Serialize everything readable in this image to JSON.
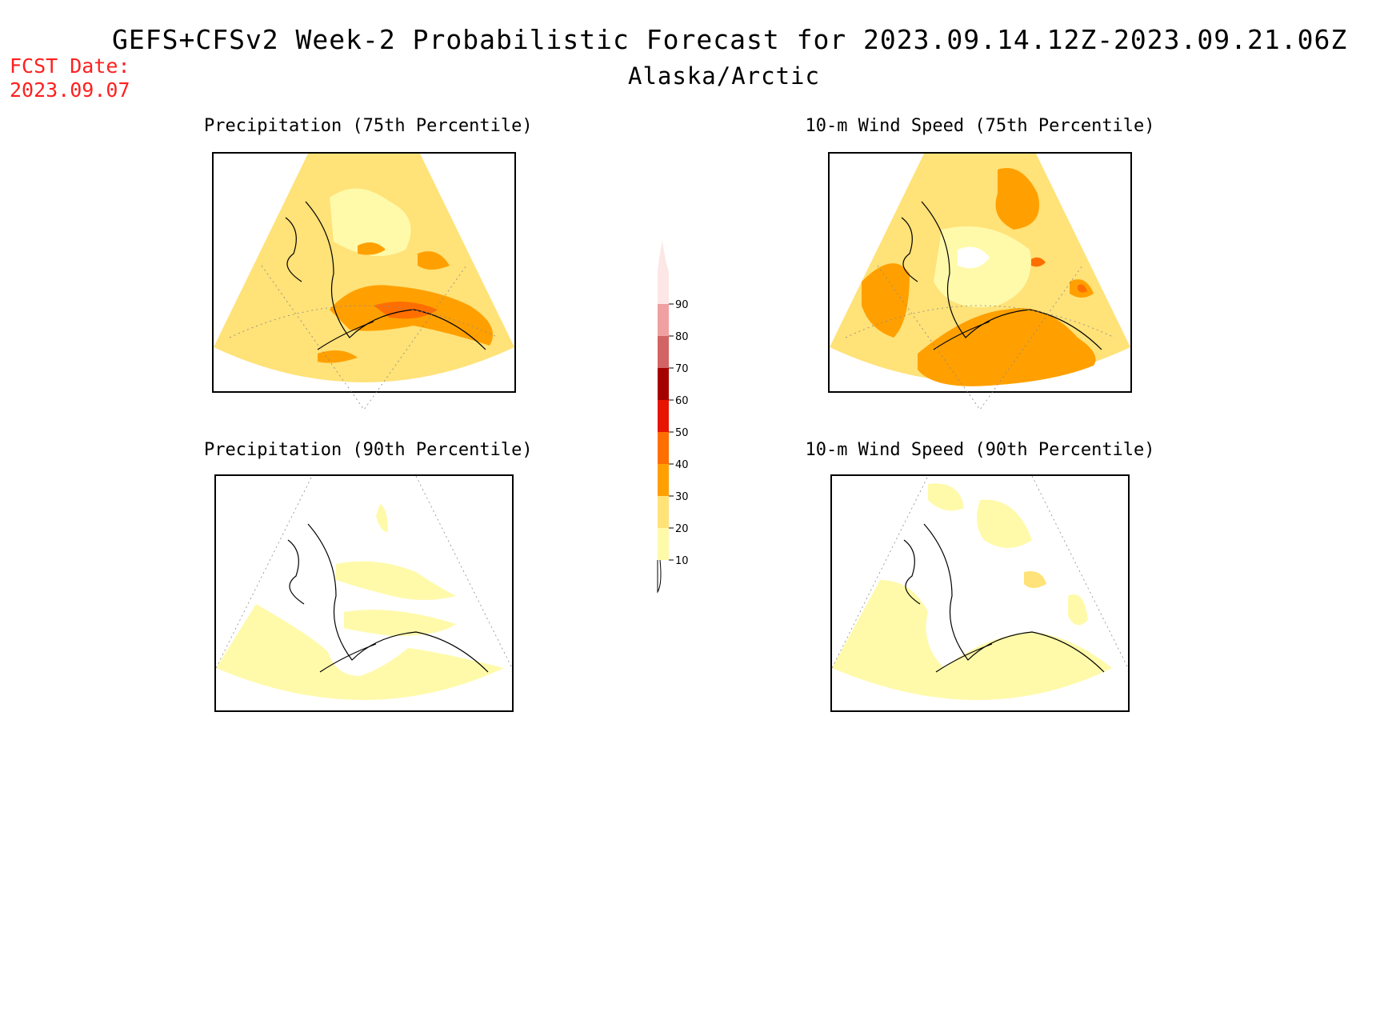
{
  "header": {
    "title": "GEFS+CFSv2 Week-2 Probabilistic Forecast for 2023.09.14.12Z-2023.09.21.06Z",
    "subtitle": "Alaska/Arctic",
    "fcst_label": "FCST Date:",
    "fcst_date": "2023.09.07"
  },
  "panels": [
    {
      "title": "Precipitation (75th Percentile)",
      "field": "precip75"
    },
    {
      "title": "10-m Wind Speed (75th Percentile)",
      "field": "wind75"
    },
    {
      "title": "Precipitation (90th Percentile)",
      "field": "precip90"
    },
    {
      "title": "10-m Wind Speed (90th Percentile)",
      "field": "wind90"
    }
  ],
  "colorbar": {
    "levels": [
      "10",
      "20",
      "30",
      "40",
      "50",
      "60",
      "70",
      "80",
      "90"
    ],
    "colors": {
      "c10": "#fffaaa",
      "c20": "#ffe278",
      "c30": "#ffa000",
      "c40": "#ff6e00",
      "c50": "#e61400",
      "c60": "#a50000",
      "c70": "#d26464",
      "c80": "#f0a0a0",
      "c90": "#fde6e6"
    }
  }
}
